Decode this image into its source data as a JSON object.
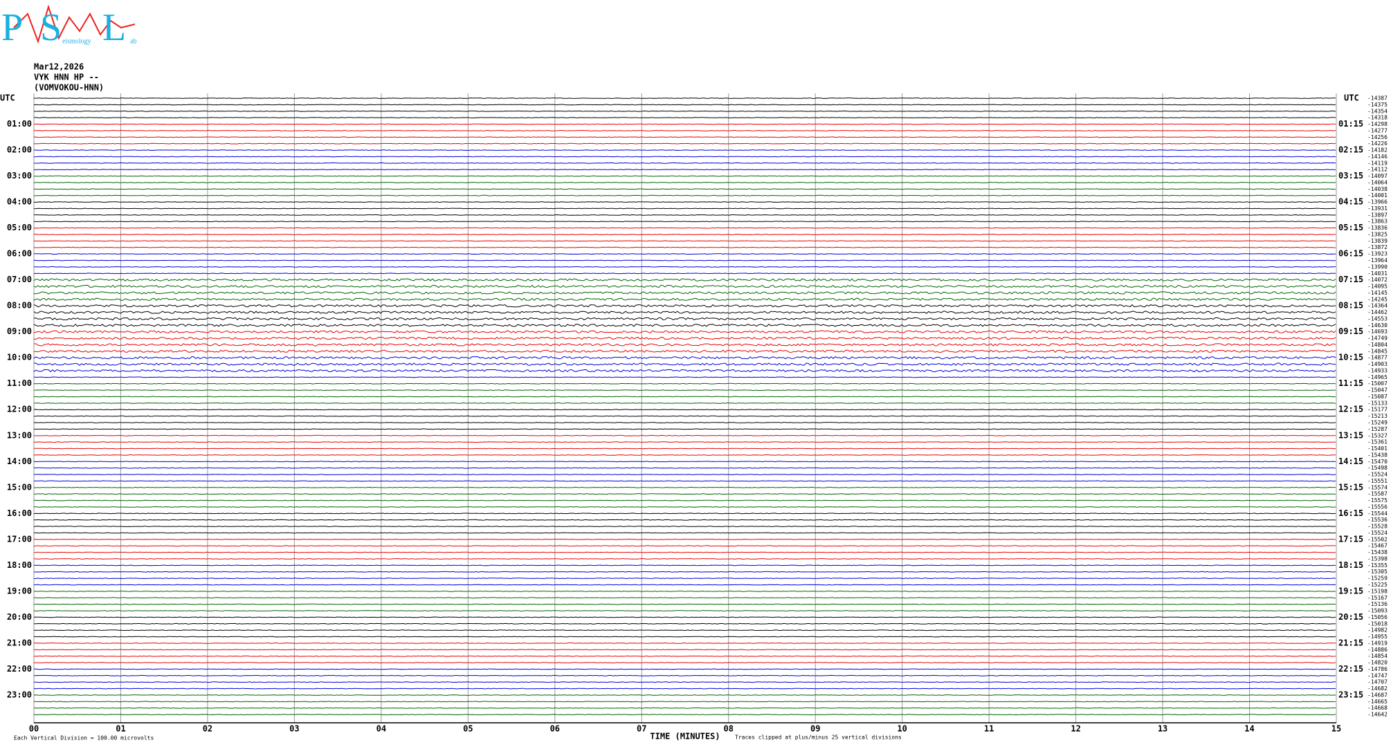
{
  "logo": {
    "letters": [
      "P",
      "S",
      "L"
    ],
    "small": [
      "eismology",
      "ab"
    ]
  },
  "header": {
    "date": "Mar12,2026",
    "channel": "VYK HNN HP --",
    "station": "(VOMVOKOU-HNN)"
  },
  "left_axis": {
    "title": "UTC",
    "labels": [
      "01:00",
      "02:00",
      "03:00",
      "04:00",
      "05:00",
      "06:00",
      "07:00",
      "08:00",
      "09:00",
      "10:00",
      "11:00",
      "12:00",
      "13:00",
      "14:00",
      "15:00",
      "16:00",
      "17:00",
      "18:00",
      "19:00",
      "20:00",
      "21:00",
      "22:00",
      "23:00"
    ]
  },
  "right_axis": {
    "title": "UTC",
    "labels": [
      "01:15",
      "02:15",
      "03:15",
      "04:15",
      "05:15",
      "06:15",
      "07:15",
      "08:15",
      "09:15",
      "10:15",
      "11:15",
      "12:15",
      "13:15",
      "14:15",
      "15:15",
      "16:15",
      "17:15",
      "18:15",
      "19:15",
      "20:15",
      "21:15",
      "22:15",
      "23:15"
    ]
  },
  "trace_offsets": [
    -14387,
    -14375,
    -14354,
    -14318,
    -14298,
    -14277,
    -14256,
    -14226,
    -14182,
    -14146,
    -14119,
    -14112,
    -14097,
    -14064,
    -14038,
    -14001,
    -13966,
    -13931,
    -13897,
    -13863,
    -13836,
    -13825,
    -13839,
    -13872,
    -13923,
    -13964,
    -13990,
    -14031,
    -14072,
    -14095,
    -14145,
    -14245,
    -14364,
    -14462,
    -14553,
    -14630,
    -14693,
    -14749,
    -14804,
    -14845,
    -14877,
    -14903,
    -14933,
    -14965,
    -15007,
    -15047,
    -15087,
    -15133,
    -15177,
    -15213,
    -15249,
    -15287,
    -15327,
    -15361,
    -15401,
    -15438,
    -15470,
    -15498,
    -15524,
    -15551,
    -15574,
    -15587,
    -15575,
    -15556,
    -15544,
    -15536,
    -15528,
    -15524,
    -15502,
    -15467,
    -15438,
    -15398,
    -15355,
    -15305,
    -15259,
    -15225,
    -15198,
    -15167,
    -15136,
    -15093,
    -15056,
    -15018,
    -14982,
    -14955,
    -14919,
    -14886,
    -14854,
    -14820,
    -14786,
    -14747,
    -14707,
    -14682,
    -14687,
    -14665,
    -14668,
    -14642
  ],
  "x_axis": {
    "ticks": [
      "00",
      "01",
      "02",
      "03",
      "04",
      "05",
      "06",
      "07",
      "08",
      "09",
      "10",
      "11",
      "12",
      "13",
      "14",
      "15"
    ],
    "title": "TIME (MINUTES)"
  },
  "footer": {
    "scale": "Each Vertical Division =  100.00 microvolts",
    "clip": "Traces clipped at plus/minus 25 vertical divisions"
  }
}
